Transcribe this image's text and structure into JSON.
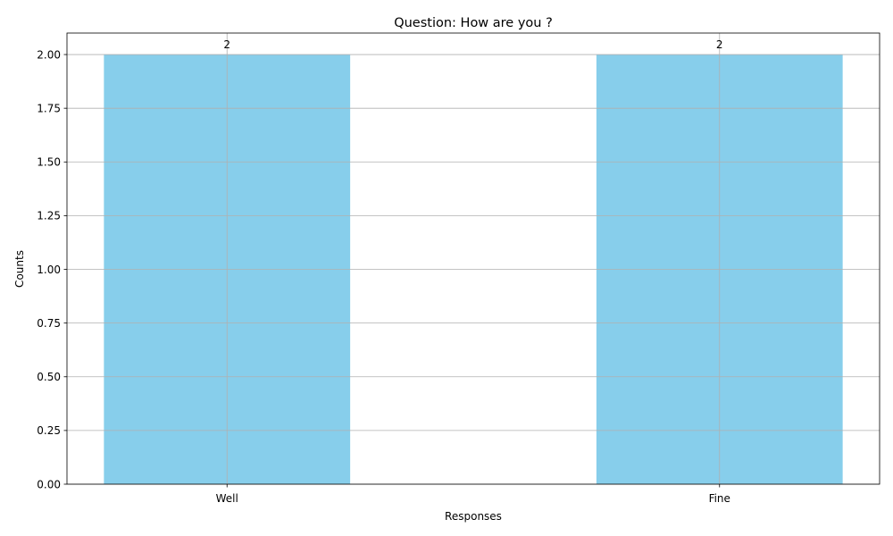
{
  "chart_data": {
    "type": "bar",
    "title": "Question: How are you  ?",
    "xlabel": "Responses",
    "ylabel": "Counts",
    "categories": [
      "Well",
      "Fine"
    ],
    "values": [
      2,
      2
    ],
    "data_labels": [
      "2",
      "2"
    ],
    "ylim": [
      0,
      2.1
    ],
    "yticks": [
      0.0,
      0.25,
      0.5,
      0.75,
      1.0,
      1.25,
      1.5,
      1.75,
      2.0
    ],
    "ytick_labels": [
      "0.00",
      "0.25",
      "0.50",
      "0.75",
      "1.00",
      "1.25",
      "1.50",
      "1.75",
      "2.00"
    ],
    "grid": true,
    "bar_color": "#87ceeb",
    "grid_color": "#b0b0b0"
  }
}
